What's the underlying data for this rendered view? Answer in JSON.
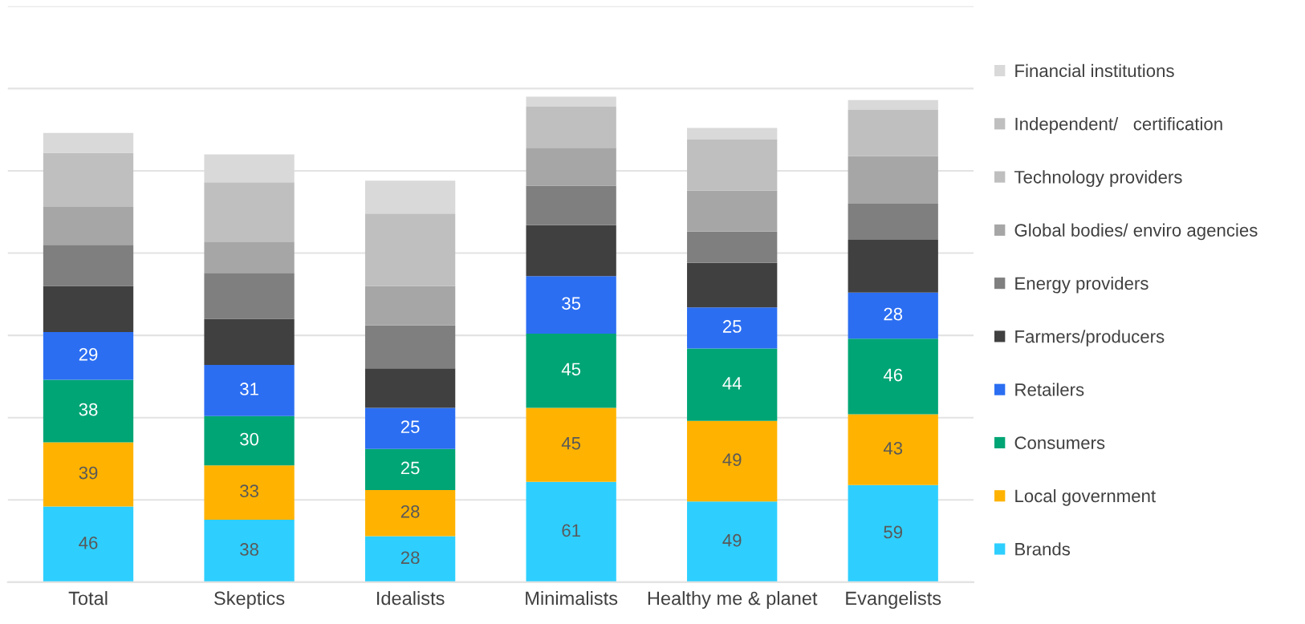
{
  "chart_data": {
    "type": "bar",
    "stacked": true,
    "categories": [
      "Total",
      "Skeptics",
      "Idealists",
      "Minimalists",
      "Healthy me & planet",
      "Evangelists"
    ],
    "series": [
      {
        "name": "Brands",
        "color": "#2ecfff",
        "values": [
          46,
          38,
          28,
          61,
          49,
          59
        ],
        "value_labels": [
          "46",
          "38",
          "28",
          "61",
          "49",
          "59"
        ]
      },
      {
        "name": "Local government",
        "color": "#ffb300",
        "values": [
          39,
          33,
          28,
          45,
          49,
          43
        ],
        "value_labels": [
          "39",
          "33",
          "28",
          "45",
          "49",
          "43"
        ]
      },
      {
        "name": "Consumers",
        "color": "#00a575",
        "values": [
          38,
          30,
          25,
          45,
          44,
          46
        ],
        "value_labels": [
          "38",
          "30",
          "25",
          "45",
          "44",
          "46"
        ]
      },
      {
        "name": "Retailers",
        "color": "#2b6ef2",
        "values": [
          29,
          31,
          25,
          35,
          25,
          28
        ],
        "value_labels": [
          "29",
          "31",
          "25",
          "35",
          "25",
          "28"
        ]
      },
      {
        "name": "Farmers/producers",
        "color": "#404040",
        "values": [
          28,
          28,
          24,
          31,
          27,
          32
        ]
      },
      {
        "name": "Energy providers",
        "color": "#7f7f7f",
        "values": [
          25,
          28,
          26,
          24,
          19,
          22
        ]
      },
      {
        "name": "Global bodies/ enviro agencies",
        "color": "#a6a6a6",
        "values": [
          23,
          19,
          24,
          23,
          25,
          29
        ]
      },
      {
        "name": "Technology providers",
        "color": "#bfbfbf",
        "values": [
          33,
          36,
          44,
          25,
          31,
          28
        ]
      },
      {
        "name": "Independent/   certification",
        "color": "#bfbfbf",
        "values": [
          null,
          null,
          null,
          null,
          null,
          null
        ]
      },
      {
        "name": "Financial institutions",
        "color": "#d9d9d9",
        "values": [
          12,
          17,
          20,
          6,
          7,
          6
        ]
      }
    ],
    "ylim": [
      0,
      350
    ],
    "yticks": [
      {
        "value": 0,
        "label": null
      },
      {
        "value": 50,
        "label": null
      },
      {
        "value": 100,
        "label": null
      },
      {
        "value": 150,
        "label": null
      },
      {
        "value": 200,
        "label": null
      },
      {
        "value": 250,
        "label": null
      },
      {
        "value": 300,
        "label": null
      },
      {
        "value": 350,
        "label": null
      }
    ],
    "tick_labels": "x",
    "grid": "y",
    "legend": "right"
  }
}
